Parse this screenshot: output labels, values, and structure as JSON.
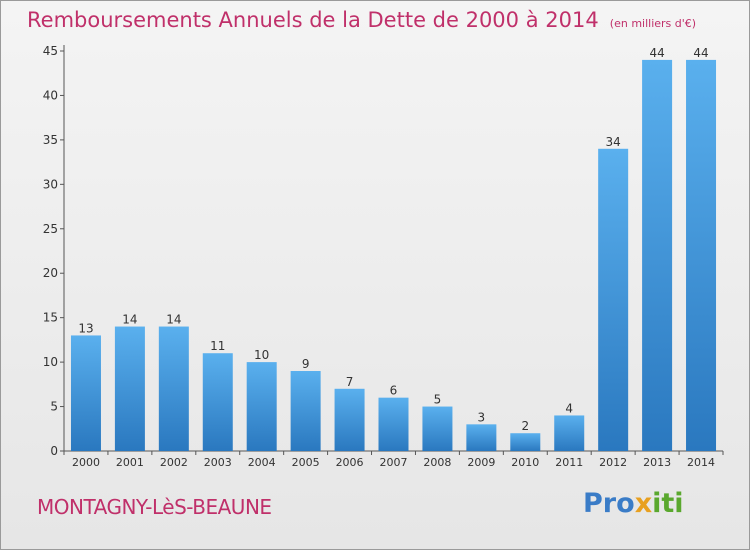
{
  "chart_data": {
    "type": "bar",
    "title": "Remboursements Annuels de la Dette de 2000 à 2014",
    "unit": "(en milliers d'€)",
    "categories": [
      "2000",
      "2001",
      "2002",
      "2003",
      "2004",
      "2005",
      "2006",
      "2007",
      "2008",
      "2009",
      "2010",
      "2011",
      "2012",
      "2013",
      "2014"
    ],
    "values": [
      13,
      14,
      14,
      11,
      10,
      9,
      7,
      6,
      5,
      3,
      2,
      4,
      34,
      44,
      44
    ],
    "ylim": [
      0,
      45
    ],
    "yticks": [
      0,
      5,
      10,
      15,
      20,
      25,
      30,
      35,
      40,
      45
    ],
    "grid": false,
    "bar_color": "#3d8fd6"
  },
  "commune": "MONTAGNY-LèS-BEAUNE",
  "logo": {
    "text": "Proxiti",
    "letters": [
      "P",
      "r",
      "o",
      "x",
      "i",
      "t",
      "i"
    ],
    "colors": [
      "#3a7cc7",
      "#3a7cc7",
      "#3a7cc7",
      "#e8a020",
      "#5aa82e",
      "#5aa82e",
      "#5aa82e"
    ]
  }
}
